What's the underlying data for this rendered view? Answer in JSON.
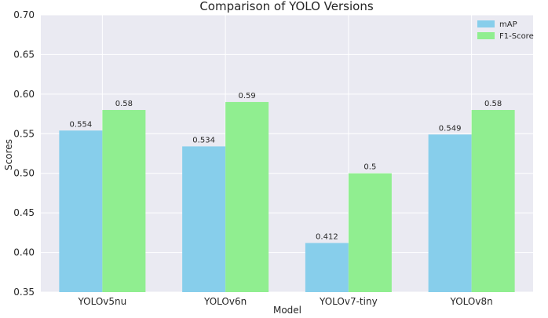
{
  "chart_data": {
    "type": "bar",
    "title": "Comparison of YOLO Versions",
    "xlabel": "Model",
    "ylabel": "Scores",
    "ylim": [
      0.35,
      0.7
    ],
    "yticks": [
      "0.35",
      "0.40",
      "0.45",
      "0.50",
      "0.55",
      "0.60",
      "0.65",
      "0.70"
    ],
    "categories": [
      "YOLOv5nu",
      "YOLOv6n",
      "YOLOv7-tiny",
      "YOLOv8n"
    ],
    "series": [
      {
        "name": "mAP",
        "color": "#87ceeb",
        "values": [
          0.554,
          0.534,
          0.412,
          0.549
        ],
        "labels": [
          "0.554",
          "0.534",
          "0.412",
          "0.549"
        ]
      },
      {
        "name": "F1-Score",
        "color": "#90ee90",
        "values": [
          0.58,
          0.59,
          0.5,
          0.58
        ],
        "labels": [
          "0.58",
          "0.59",
          "0.5",
          "0.58"
        ]
      }
    ],
    "grid": true,
    "legend_position": "top-right",
    "background_color": "#eaeaf2",
    "grid_color": "#ffffff"
  }
}
